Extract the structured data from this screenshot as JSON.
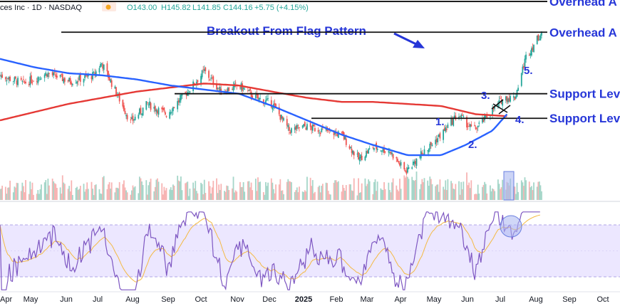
{
  "header": {
    "symbol_text": "ces Inc · 1D · NASDAQ",
    "open": "O143.00",
    "high": "H145.82",
    "low": "L141.85",
    "close": "C144.16",
    "change": "+5.75 (+4.15%)",
    "colors": {
      "text": "#131722",
      "up": "#26a69a",
      "down": "#ef5350"
    }
  },
  "annotations": {
    "headline": "Breakout From Flag Pattern",
    "numbers": [
      "1.",
      "2.",
      "3.",
      "4.",
      "5."
    ],
    "accent": "#2636d8"
  },
  "chart_data": {
    "type": "candlestick",
    "title": "",
    "x_ticks": [
      "Apr",
      "May",
      "Jun",
      "Jul",
      "Aug",
      "Sep",
      "Oct",
      "Nov",
      "Dec",
      "2025",
      "Feb",
      "Mar",
      "Apr",
      "May",
      "Jun",
      "Jul",
      "Aug",
      "Sep",
      "Oct"
    ],
    "start_date": "2024-04-10",
    "end_date": "2025-08-08",
    "price_range": [
      75,
      150
    ],
    "price_path": [
      [
        "2024-04-10",
        123
      ],
      [
        "2024-05-01",
        119
      ],
      [
        "2024-05-22",
        124
      ],
      [
        "2024-06-12",
        120
      ],
      [
        "2024-07-03",
        123
      ],
      [
        "2024-07-10",
        129
      ],
      [
        "2024-07-20",
        118
      ],
      [
        "2024-08-05",
        100
      ],
      [
        "2024-08-20",
        109
      ],
      [
        "2024-09-06",
        104
      ],
      [
        "2024-09-25",
        115
      ],
      [
        "2024-10-10",
        125
      ],
      [
        "2024-10-25",
        115
      ],
      [
        "2024-11-10",
        118
      ],
      [
        "2024-11-25",
        112
      ],
      [
        "2024-12-10",
        109
      ],
      [
        "2024-12-25",
        96
      ],
      [
        "2025-01-08",
        98
      ],
      [
        "2025-01-25",
        96
      ],
      [
        "2025-02-10",
        94
      ],
      [
        "2025-02-25",
        82
      ],
      [
        "2025-03-10",
        88
      ],
      [
        "2025-03-25",
        86
      ],
      [
        "2025-04-08",
        76
      ],
      [
        "2025-04-22",
        84
      ],
      [
        "2025-05-10",
        94
      ],
      [
        "2025-05-25",
        104
      ],
      [
        "2025-06-08",
        96
      ],
      [
        "2025-06-22",
        104
      ],
      [
        "2025-07-05",
        112
      ],
      [
        "2025-07-15",
        112
      ],
      [
        "2025-07-25",
        132
      ],
      [
        "2025-08-08",
        144
      ]
    ],
    "sma_50": [
      [
        "2024-04-10",
        131
      ],
      [
        "2024-05-10",
        127
      ],
      [
        "2024-06-10",
        124
      ],
      [
        "2024-07-10",
        123
      ],
      [
        "2024-08-10",
        121
      ],
      [
        "2024-09-10",
        118
      ],
      [
        "2024-10-10",
        116
      ],
      [
        "2024-11-10",
        114
      ],
      [
        "2024-12-10",
        108
      ],
      [
        "2025-01-10",
        101
      ],
      [
        "2025-02-10",
        94
      ],
      [
        "2025-03-10",
        89
      ],
      [
        "2025-04-10",
        84
      ],
      [
        "2025-05-10",
        84
      ],
      [
        "2025-06-01",
        89
      ],
      [
        "2025-06-25",
        96
      ],
      [
        "2025-07-08",
        104
      ]
    ],
    "sma_200": [
      [
        "2024-04-10",
        101
      ],
      [
        "2024-06-10",
        109
      ],
      [
        "2024-08-10",
        115
      ],
      [
        "2024-10-10",
        119
      ],
      [
        "2024-11-10",
        118
      ],
      [
        "2024-12-10",
        115
      ],
      [
        "2025-01-10",
        112
      ],
      [
        "2025-02-10",
        110
      ],
      [
        "2025-03-10",
        110
      ],
      [
        "2025-04-10",
        109
      ],
      [
        "2025-05-10",
        108
      ],
      [
        "2025-06-10",
        104
      ],
      [
        "2025-07-08",
        103
      ]
    ],
    "levels": [
      {
        "label": "Overhead A",
        "price": 159
      },
      {
        "label": "Overhead A",
        "price": 144
      },
      {
        "label": "Support Lev",
        "price": 114
      },
      {
        "label": "Support Lev",
        "price": 102
      }
    ],
    "rsi_band": [
      30,
      70
    ],
    "rsi_colors": {
      "line": "#7e57c2",
      "signal": "#f4b942",
      "band": "#ece7ff"
    },
    "series_colors": {
      "sma_50": "#2962ff",
      "sma_200": "#e53935",
      "up": "#26a69a",
      "down": "#ef5350"
    }
  }
}
